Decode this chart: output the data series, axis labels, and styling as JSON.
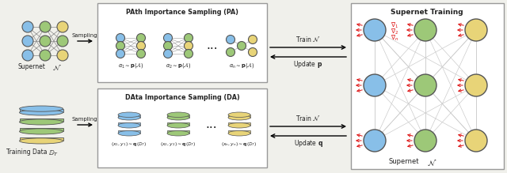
{
  "bg_color": "#f0f0eb",
  "node_blue": "#88bfe8",
  "node_green": "#9dc878",
  "node_yellow": "#e8d478",
  "edge_color": "#999999",
  "red_arrow": "#dd1111",
  "text_color": "#222222",
  "bc": "#555555",
  "title_pa": "PAth Importance Sampling (PA)",
  "title_da": "DAta Importance Sampling (DA)",
  "title_sn": "Supernet Training",
  "label_supernet": "Supernet",
  "label_N": "$\\mathcal{N}$",
  "label_training_data": "Training Data",
  "label_DT": "$\\mathbb{D}_T$",
  "label_supernet_bot": "Supernet",
  "label_N_bot": "$\\mathcal{N}$",
  "sampling_label": "Sampling",
  "train_N_label": "Train $\\mathcal{N}$",
  "update_p_label": "Update $\\mathbf{p}$",
  "train_N2_label": "Train $\\mathcal{N}$",
  "update_q_label": "Update $\\mathbf{q}$",
  "alpha1": "$\\alpha_1 \\sim \\mathbf{p}(\\mathcal{A})$",
  "alpha2": "$\\alpha_2 \\sim \\mathbf{p}(\\mathcal{A})$",
  "alphan": "$\\alpha_n \\sim \\mathbf{p}(\\mathcal{A})$",
  "xy1": "$(x_1,y_1)\\sim\\mathbf{q}(\\mathbb{D}_T)$",
  "xy2": "$(x_2,y_2)\\sim\\mathbf{q}(\\mathbb{D}_T)$",
  "xyn": "$(x_n,y_n)\\sim\\mathbf{q}(\\mathbb{D}_T)$",
  "grad1": "$\\nabla_1$",
  "grad2": "$\\nabla_2$",
  "gradn": "$\\nabla_n$"
}
